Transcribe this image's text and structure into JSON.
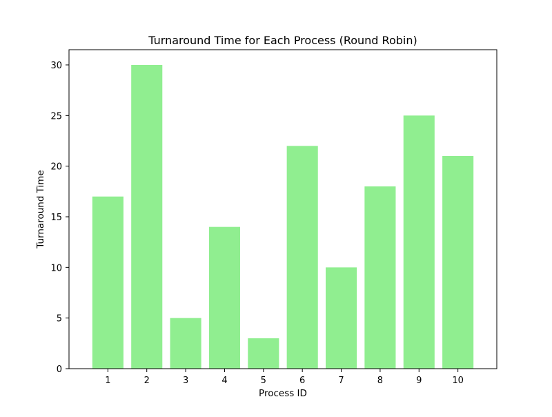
{
  "chart_data": {
    "type": "bar",
    "title": "Turnaround Time for Each Process (Round Robin)",
    "xlabel": "Process ID",
    "ylabel": "Turnaround Time",
    "categories": [
      "1",
      "2",
      "3",
      "4",
      "5",
      "6",
      "7",
      "8",
      "9",
      "10"
    ],
    "values": [
      17,
      30,
      5,
      14,
      3,
      22,
      10,
      18,
      25,
      21
    ],
    "ylim": [
      0,
      31.5
    ],
    "yticks": [
      0,
      5,
      10,
      15,
      20,
      25,
      30
    ],
    "grid": false,
    "legend": "none",
    "bar_color": "#90ee90"
  }
}
